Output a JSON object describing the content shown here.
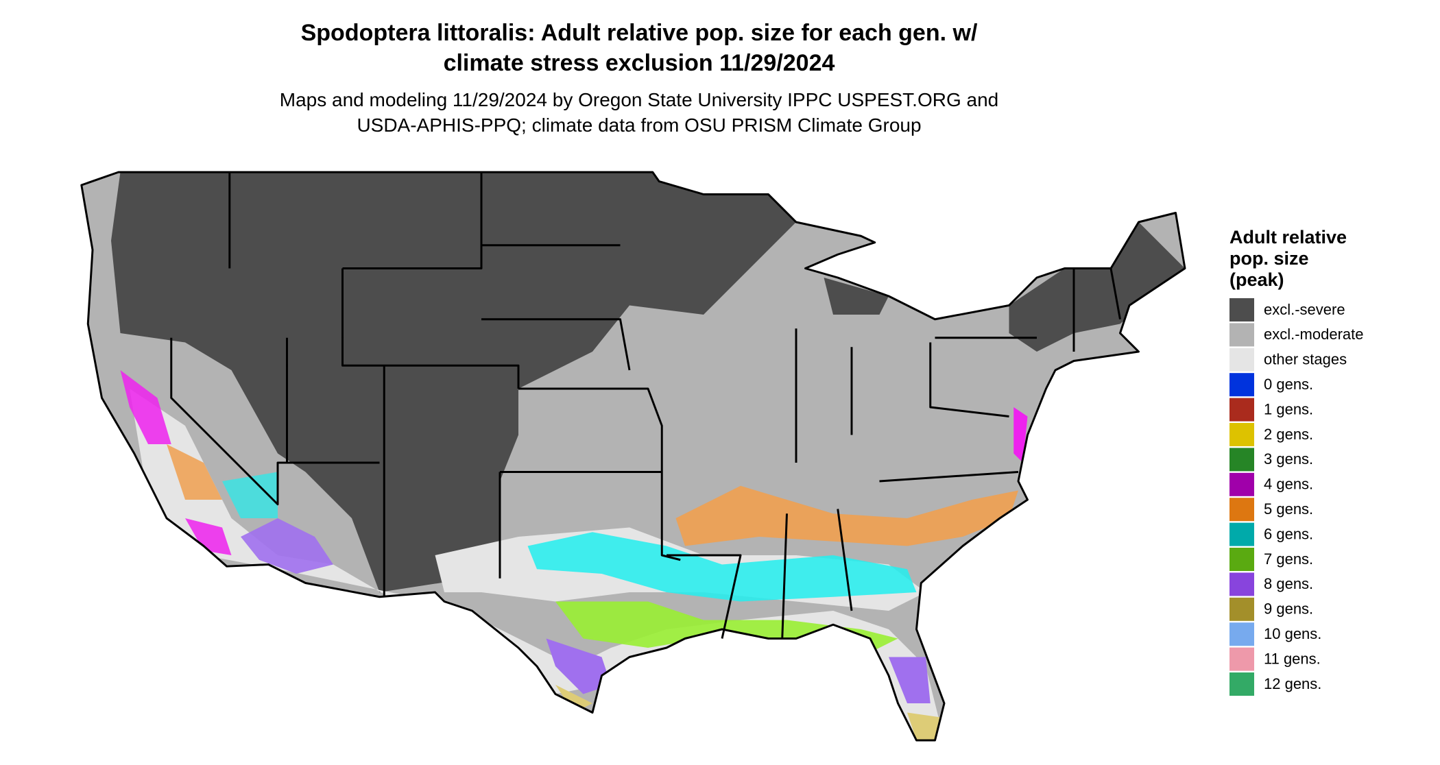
{
  "title_lines": [
    "Spodoptera littoralis: Adult relative pop. size for each gen. w/",
    "climate stress exclusion 11/29/2024"
  ],
  "subtitle_lines": [
    "Maps and modeling 11/29/2024 by Oregon State University IPPC USPEST.ORG and",
    "USDA-APHIS-PPQ; climate data from OSU PRISM Climate Group"
  ],
  "legend": {
    "title_lines": [
      "Adult relative",
      "pop. size",
      "(peak)"
    ],
    "items": [
      {
        "label": "excl.-severe",
        "color": "#4d4d4d"
      },
      {
        "label": "excl.-moderate",
        "color": "#b3b3b3"
      },
      {
        "label": "other stages",
        "color": "#e5e5e5"
      },
      {
        "label": "0 gens.",
        "color": "#0033dd"
      },
      {
        "label": "1 gens.",
        "color": "#aa2b1d"
      },
      {
        "label": "2 gens.",
        "color": "#ddc200"
      },
      {
        "label": "3 gens.",
        "color": "#268526"
      },
      {
        "label": "4 gens.",
        "color": "#a000aa"
      },
      {
        "label": "5 gens.",
        "color": "#dd7711"
      },
      {
        "label": "6 gens.",
        "color": "#00aaaa"
      },
      {
        "label": "7 gens.",
        "color": "#5aaa11"
      },
      {
        "label": "8 gens.",
        "color": "#8844dd"
      },
      {
        "label": "9 gens.",
        "color": "#a38f2a"
      },
      {
        "label": "10 gens.",
        "color": "#77aaee"
      },
      {
        "label": "11 gens.",
        "color": "#ee99aa"
      },
      {
        "label": "12 gens.",
        "color": "#33aa66"
      }
    ]
  }
}
